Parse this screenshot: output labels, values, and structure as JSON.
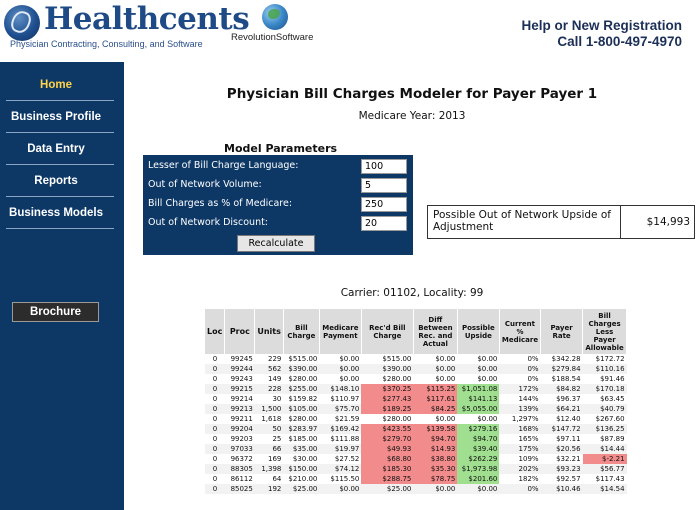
{
  "header": {
    "logo_name": "Healthcents",
    "logo_tagline": "Physician Contracting, Consulting, and Software",
    "partner_name": "RevolutionSoftware",
    "help_line1": "Help or New Registration",
    "help_line2": "Call 1-800-497-4970"
  },
  "sidebar": {
    "items": [
      {
        "label": "Home"
      },
      {
        "label": "Business Profile"
      },
      {
        "label": "Data Entry"
      },
      {
        "label": "Reports"
      },
      {
        "label": "Business Models"
      }
    ],
    "brochure_label": "Brochure"
  },
  "main": {
    "title": "Physician Bill Charges Modeler for Payer Payer 1",
    "medicare_year": "Medicare Year: 2013",
    "model_params": {
      "title": "Model Parameters",
      "fields": [
        {
          "label": "Lesser of Bill Charge Language:",
          "value": "100"
        },
        {
          "label": "Out of Network Volume:",
          "value": "5"
        },
        {
          "label": "Bill Charges as % of Medicare:",
          "value": "250"
        },
        {
          "label": "Out of Network Discount:",
          "value": "20"
        }
      ],
      "recalculate_label": "Recalculate"
    },
    "upside": {
      "label": "Possible Out of Network Upside of Adjustment",
      "value": "$14,993"
    },
    "carrier": "Carrier: 01102, Locality: 99"
  },
  "table": {
    "headers": [
      "Loc",
      "Proc",
      "Units",
      "Bill Charge",
      "Medicare Payment",
      "Rec'd Bill Charge",
      "Diff Between Rec. and Actual",
      "Possible Upside",
      "Current % Medicare",
      "Payer Rate",
      "Bill Charges Less Payer Allowable"
    ],
    "rows": [
      {
        "loc": "0",
        "proc": "99245",
        "units": "229",
        "bill": "$515.00",
        "medicare": "$0.00",
        "recd": "$515.00",
        "diff": "$0.00",
        "upside": "$0.00",
        "pct": "0%",
        "payer": "$342.28",
        "less": "$172.72",
        "hl": {}
      },
      {
        "loc": "0",
        "proc": "99244",
        "units": "562",
        "bill": "$390.00",
        "medicare": "$0.00",
        "recd": "$390.00",
        "diff": "$0.00",
        "upside": "$0.00",
        "pct": "0%",
        "payer": "$279.84",
        "less": "$110.16",
        "hl": {}
      },
      {
        "loc": "0",
        "proc": "99243",
        "units": "149",
        "bill": "$280.00",
        "medicare": "$0.00",
        "recd": "$280.00",
        "diff": "$0.00",
        "upside": "$0.00",
        "pct": "0%",
        "payer": "$188.54",
        "less": "$91.46",
        "hl": {}
      },
      {
        "loc": "0",
        "proc": "99215",
        "units": "228",
        "bill": "$255.00",
        "medicare": "$148.10",
        "recd": "$370.25",
        "diff": "$115.25",
        "upside": "$1,051.08",
        "pct": "172%",
        "payer": "$84.82",
        "less": "$170.18",
        "hl": {
          "recd": "red",
          "diff": "red",
          "upside": "green"
        }
      },
      {
        "loc": "0",
        "proc": "99214",
        "units": "30",
        "bill": "$159.82",
        "medicare": "$110.97",
        "recd": "$277.43",
        "diff": "$117.61",
        "upside": "$141.13",
        "pct": "144%",
        "payer": "$96.37",
        "less": "$63.45",
        "hl": {
          "recd": "red",
          "diff": "red",
          "upside": "green"
        }
      },
      {
        "loc": "0",
        "proc": "99213",
        "units": "1,500",
        "bill": "$105.00",
        "medicare": "$75.70",
        "recd": "$189.25",
        "diff": "$84.25",
        "upside": "$5,055.00",
        "pct": "139%",
        "payer": "$64.21",
        "less": "$40.79",
        "hl": {
          "recd": "red",
          "diff": "red",
          "upside": "green"
        }
      },
      {
        "loc": "0",
        "proc": "99211",
        "units": "1,618",
        "bill": "$280.00",
        "medicare": "$21.59",
        "recd": "$280.00",
        "diff": "$0.00",
        "upside": "$0.00",
        "pct": "1,297%",
        "payer": "$12.40",
        "less": "$267.60",
        "hl": {}
      },
      {
        "loc": "0",
        "proc": "99204",
        "units": "50",
        "bill": "$283.97",
        "medicare": "$169.42",
        "recd": "$423.55",
        "diff": "$139.58",
        "upside": "$279.16",
        "pct": "168%",
        "payer": "$147.72",
        "less": "$136.25",
        "hl": {
          "recd": "red",
          "diff": "red",
          "upside": "green"
        }
      },
      {
        "loc": "0",
        "proc": "99203",
        "units": "25",
        "bill": "$185.00",
        "medicare": "$111.88",
        "recd": "$279.70",
        "diff": "$94.70",
        "upside": "$94.70",
        "pct": "165%",
        "payer": "$97.11",
        "less": "$87.89",
        "hl": {
          "recd": "red",
          "diff": "red",
          "upside": "green"
        }
      },
      {
        "loc": "0",
        "proc": "97033",
        "units": "66",
        "bill": "$35.00",
        "medicare": "$19.97",
        "recd": "$49.93",
        "diff": "$14.93",
        "upside": "$39.40",
        "pct": "175%",
        "payer": "$20.56",
        "less": "$14.44",
        "hl": {
          "recd": "red",
          "diff": "red",
          "upside": "green"
        }
      },
      {
        "loc": "0",
        "proc": "96372",
        "units": "169",
        "bill": "$30.00",
        "medicare": "$27.52",
        "recd": "$68.80",
        "diff": "$38.80",
        "upside": "$262.29",
        "pct": "109%",
        "payer": "$32.21",
        "less": "$-2.21",
        "hl": {
          "recd": "red",
          "diff": "red",
          "upside": "green",
          "less": "red"
        }
      },
      {
        "loc": "0",
        "proc": "88305",
        "units": "1,398",
        "bill": "$150.00",
        "medicare": "$74.12",
        "recd": "$185.30",
        "diff": "$35.30",
        "upside": "$1,973.98",
        "pct": "202%",
        "payer": "$93.23",
        "less": "$56.77",
        "hl": {
          "recd": "red",
          "diff": "red",
          "upside": "green"
        }
      },
      {
        "loc": "0",
        "proc": "86112",
        "units": "64",
        "bill": "$210.00",
        "medicare": "$115.50",
        "recd": "$288.75",
        "diff": "$78.75",
        "upside": "$201.60",
        "pct": "182%",
        "payer": "$92.57",
        "less": "$117.43",
        "hl": {
          "recd": "red",
          "diff": "red",
          "upside": "green"
        }
      },
      {
        "loc": "0",
        "proc": "85025",
        "units": "192",
        "bill": "$25.00",
        "medicare": "$0.00",
        "recd": "$25.00",
        "diff": "$0.00",
        "upside": "$0.00",
        "pct": "0%",
        "payer": "$10.46",
        "less": "$14.54",
        "hl": {}
      }
    ]
  },
  "colors": {
    "nav_bg": "#0d3866",
    "nav_active": "#ffd34a",
    "highlight_red": "#f28c8c",
    "highlight_green": "#9fdf8f"
  }
}
